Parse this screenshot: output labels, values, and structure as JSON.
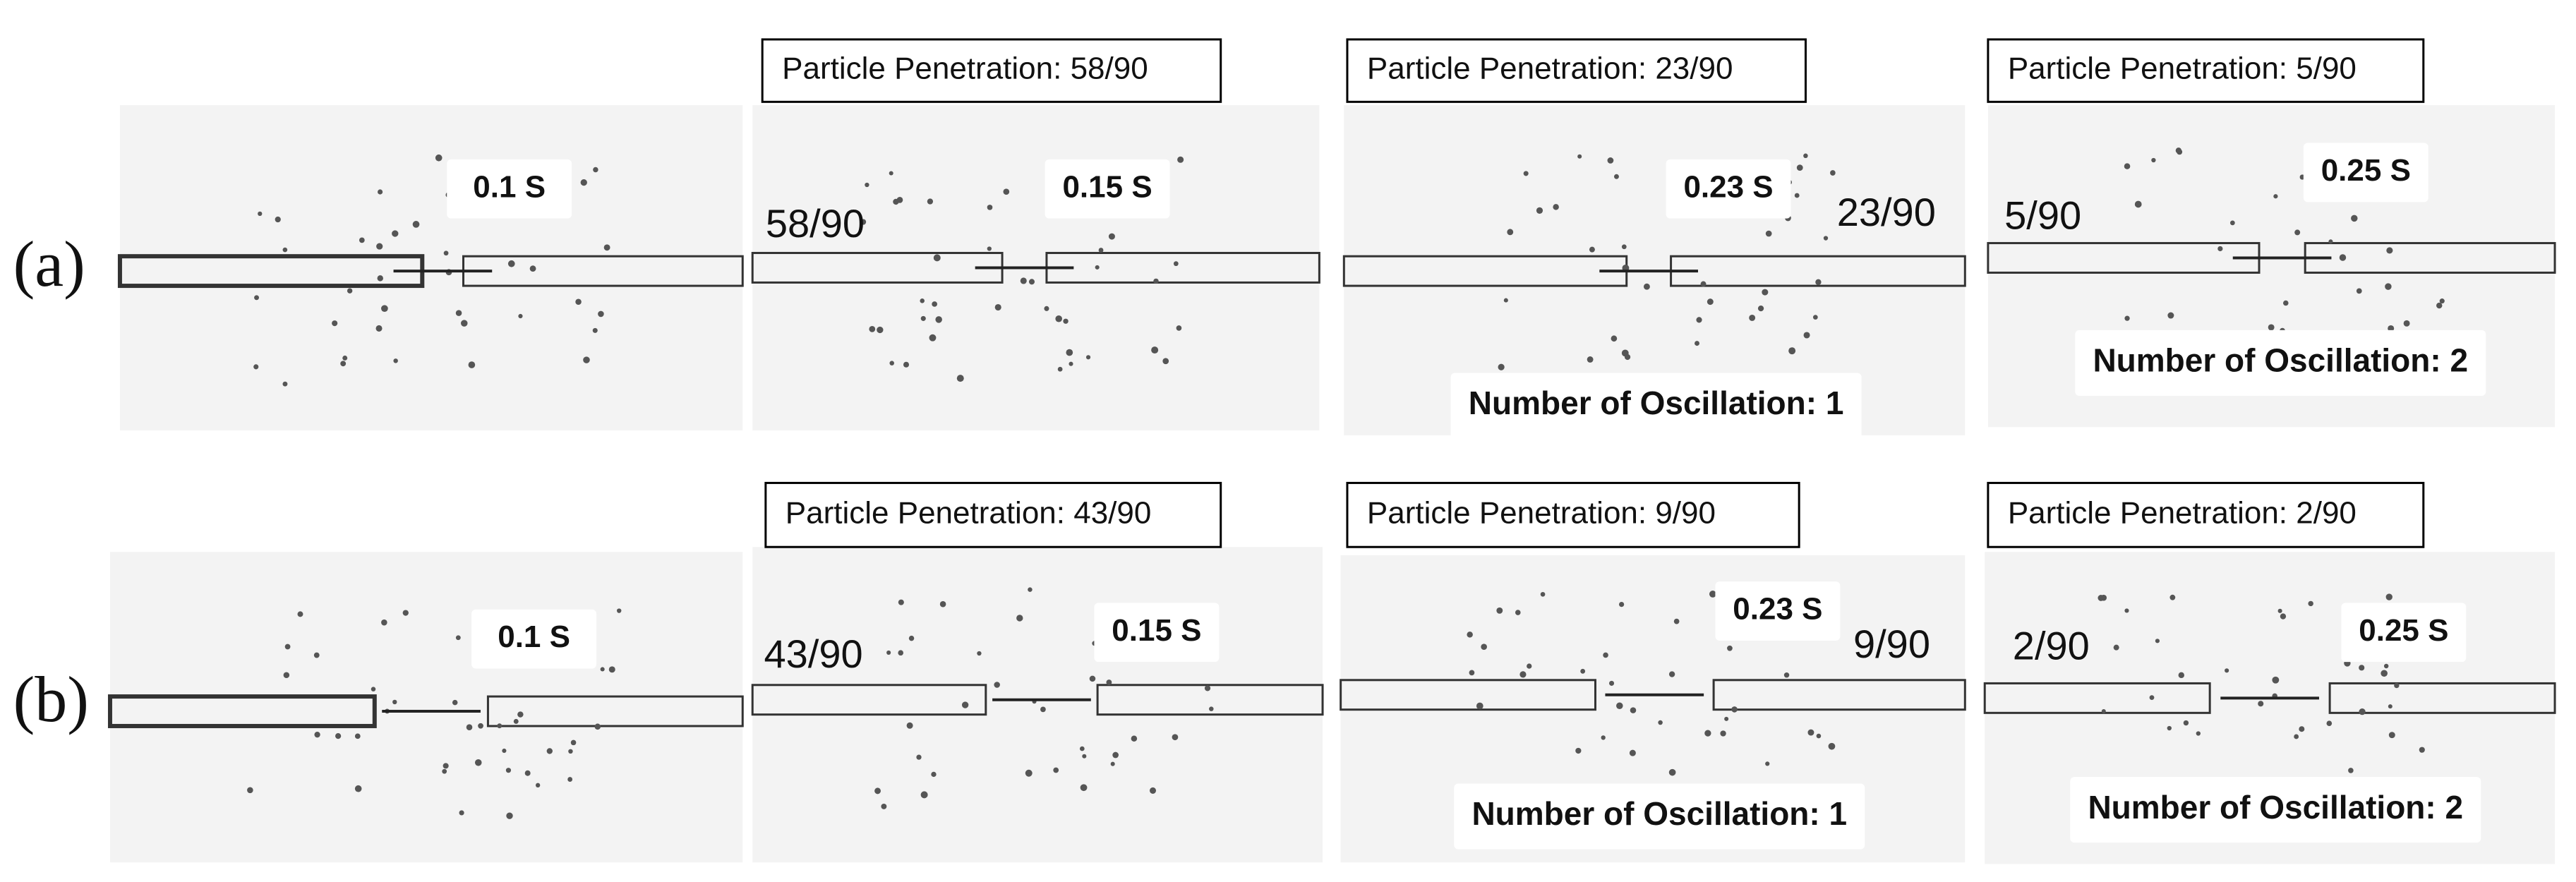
{
  "rows": [
    {
      "label": "(a)",
      "panels": [
        {
          "time": "0.1 S"
        },
        {
          "penetration": "Particle Penetration: 58/90",
          "count": "58/90",
          "time": "0.15 S"
        },
        {
          "penetration": "Particle Penetration: 23/90",
          "count": "23/90",
          "time": "0.23 S",
          "oscillation": "Number of Oscillation: 1"
        },
        {
          "penetration": "Particle Penetration: 5/90",
          "count": "5/90",
          "time": "0.25 S",
          "oscillation": "Number of Oscillation: 2"
        }
      ]
    },
    {
      "label": "(b)",
      "panels": [
        {
          "time": "0.1 S"
        },
        {
          "penetration": "Particle Penetration: 43/90",
          "count": "43/90",
          "time": "0.15 S"
        },
        {
          "penetration": "Particle Penetration: 9/90",
          "count": "9/90",
          "time": "0.23 S",
          "oscillation": "Number of Oscillation: 1"
        },
        {
          "penetration": "Particle Penetration: 2/90",
          "count": "2/90",
          "time": "0.25 S",
          "oscillation": "Number of Oscillation: 2"
        }
      ]
    }
  ]
}
